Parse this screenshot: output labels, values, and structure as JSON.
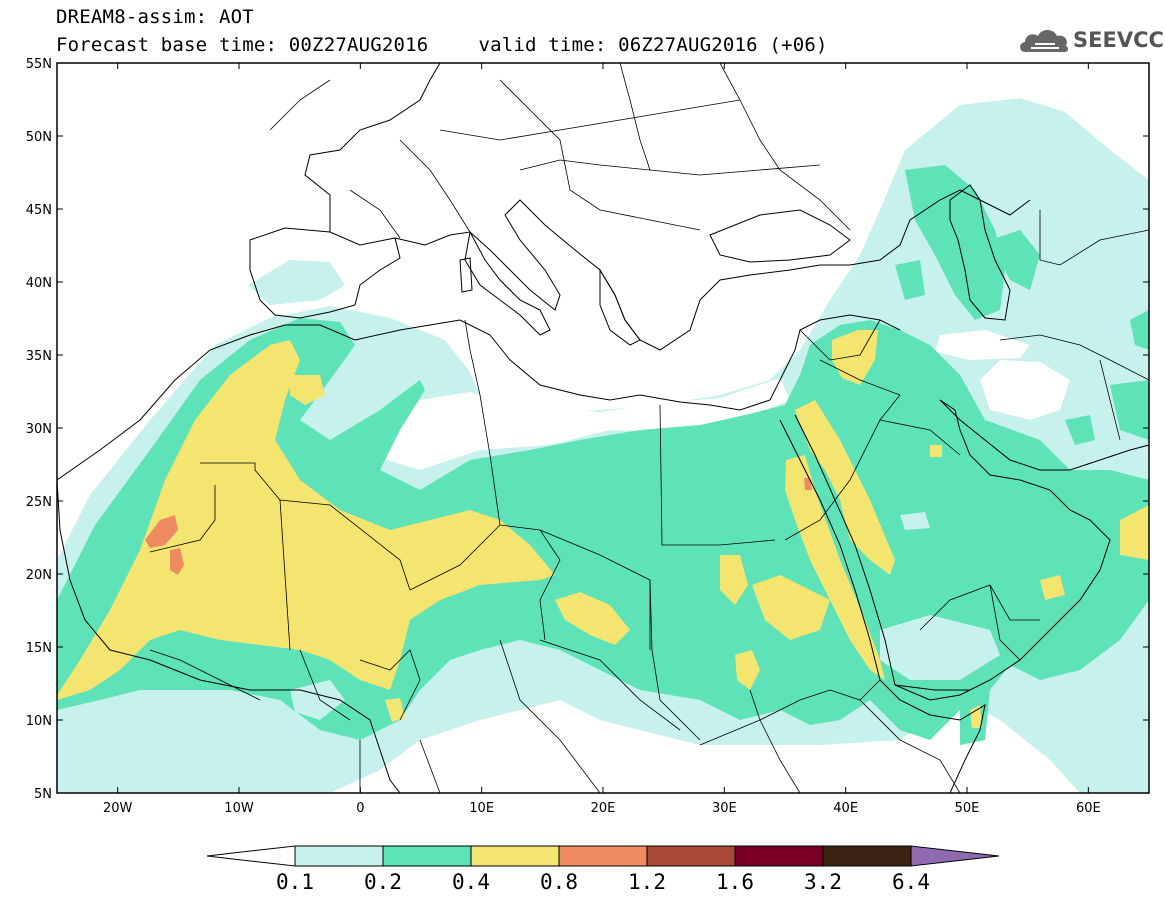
{
  "header": {
    "title": "DREAM8-assim: AOT",
    "base_time_label": "Forecast base time: 00Z27AUG2016",
    "valid_time_label": "valid time: 06Z27AUG2016 (+06)"
  },
  "logo": {
    "text": "SEEVCCC",
    "icon": "cloud-icon"
  },
  "map": {
    "projection": "lat-lon",
    "lon_range": [
      -25,
      65
    ],
    "lat_range": [
      5,
      55
    ],
    "lat_ticks": [
      "55N",
      "50N",
      "45N",
      "40N",
      "35N",
      "30N",
      "25N",
      "20N",
      "15N",
      "10N",
      "5N"
    ],
    "lon_ticks": [
      "20W",
      "10W",
      "0",
      "10E",
      "20E",
      "30E",
      "40E",
      "50E",
      "60E"
    ],
    "variable": "Aerosol optical thickness"
  },
  "colorbar": {
    "levels": [
      "0.1",
      "0.2",
      "0.4",
      "0.8",
      "1.2",
      "1.6",
      "3.2",
      "6.4"
    ],
    "colors": [
      "#c6f1ec",
      "#5ee2b8",
      "#f4e470",
      "#ee8b61",
      "#a94838",
      "#7a0025",
      "#3b2414",
      "#8e6aae"
    ],
    "extend": "both"
  }
}
